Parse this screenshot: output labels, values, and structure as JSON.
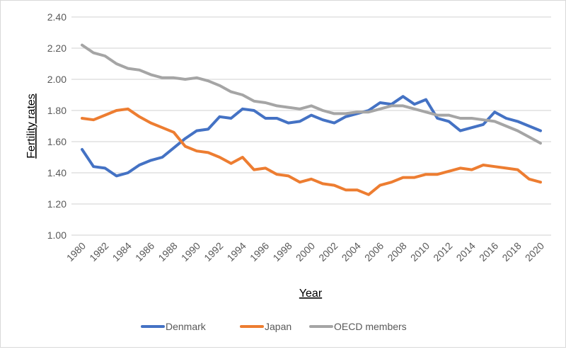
{
  "chart_data": {
    "type": "line",
    "title": "",
    "xlabel": "Year",
    "ylabel": "Fertility rates",
    "ylim": [
      1.0,
      2.4
    ],
    "yticks": [
      "1.00",
      "1.20",
      "1.40",
      "1.60",
      "1.80",
      "2.00",
      "2.20",
      "2.40"
    ],
    "ytick_values": [
      1.0,
      1.2,
      1.4,
      1.6,
      1.8,
      2.0,
      2.2,
      2.4
    ],
    "x": [
      1980,
      1981,
      1982,
      1983,
      1984,
      1985,
      1986,
      1987,
      1988,
      1989,
      1990,
      1991,
      1992,
      1993,
      1994,
      1995,
      1996,
      1997,
      1998,
      1999,
      2000,
      2001,
      2002,
      2003,
      2004,
      2005,
      2006,
      2007,
      2008,
      2009,
      2010,
      2011,
      2012,
      2013,
      2014,
      2015,
      2016,
      2017,
      2018,
      2019,
      2020
    ],
    "xtick_labels": [
      "1980",
      "1982",
      "1984",
      "1986",
      "1988",
      "1990",
      "1992",
      "1994",
      "1996",
      "1998",
      "2000",
      "2002",
      "2004",
      "2006",
      "2008",
      "2010",
      "2012",
      "2014",
      "2016",
      "2018",
      "2020"
    ],
    "grid": "horizontal",
    "legend_position": "bottom",
    "series": [
      {
        "name": "Denmark",
        "color": "#4472c4",
        "values": [
          1.55,
          1.44,
          1.43,
          1.38,
          1.4,
          1.45,
          1.48,
          1.5,
          1.56,
          1.62,
          1.67,
          1.68,
          1.76,
          1.75,
          1.81,
          1.8,
          1.75,
          1.75,
          1.72,
          1.73,
          1.77,
          1.74,
          1.72,
          1.76,
          1.78,
          1.8,
          1.85,
          1.84,
          1.89,
          1.84,
          1.87,
          1.75,
          1.73,
          1.67,
          1.69,
          1.71,
          1.79,
          1.75,
          1.73,
          1.7,
          1.67
        ]
      },
      {
        "name": "Japan",
        "color": "#ed7d31",
        "values": [
          1.75,
          1.74,
          1.77,
          1.8,
          1.81,
          1.76,
          1.72,
          1.69,
          1.66,
          1.57,
          1.54,
          1.53,
          1.5,
          1.46,
          1.5,
          1.42,
          1.43,
          1.39,
          1.38,
          1.34,
          1.36,
          1.33,
          1.32,
          1.29,
          1.29,
          1.26,
          1.32,
          1.34,
          1.37,
          1.37,
          1.39,
          1.39,
          1.41,
          1.43,
          1.42,
          1.45,
          1.44,
          1.43,
          1.42,
          1.36,
          1.34
        ]
      },
      {
        "name": "OECD members",
        "color": "#a5a5a5",
        "values": [
          2.22,
          2.17,
          2.15,
          2.1,
          2.07,
          2.06,
          2.03,
          2.01,
          2.01,
          2.0,
          2.01,
          1.99,
          1.96,
          1.92,
          1.9,
          1.86,
          1.85,
          1.83,
          1.82,
          1.81,
          1.83,
          1.8,
          1.78,
          1.78,
          1.79,
          1.79,
          1.81,
          1.83,
          1.83,
          1.81,
          1.79,
          1.77,
          1.77,
          1.75,
          1.75,
          1.74,
          1.73,
          1.7,
          1.67,
          1.63,
          1.59
        ]
      }
    ]
  }
}
